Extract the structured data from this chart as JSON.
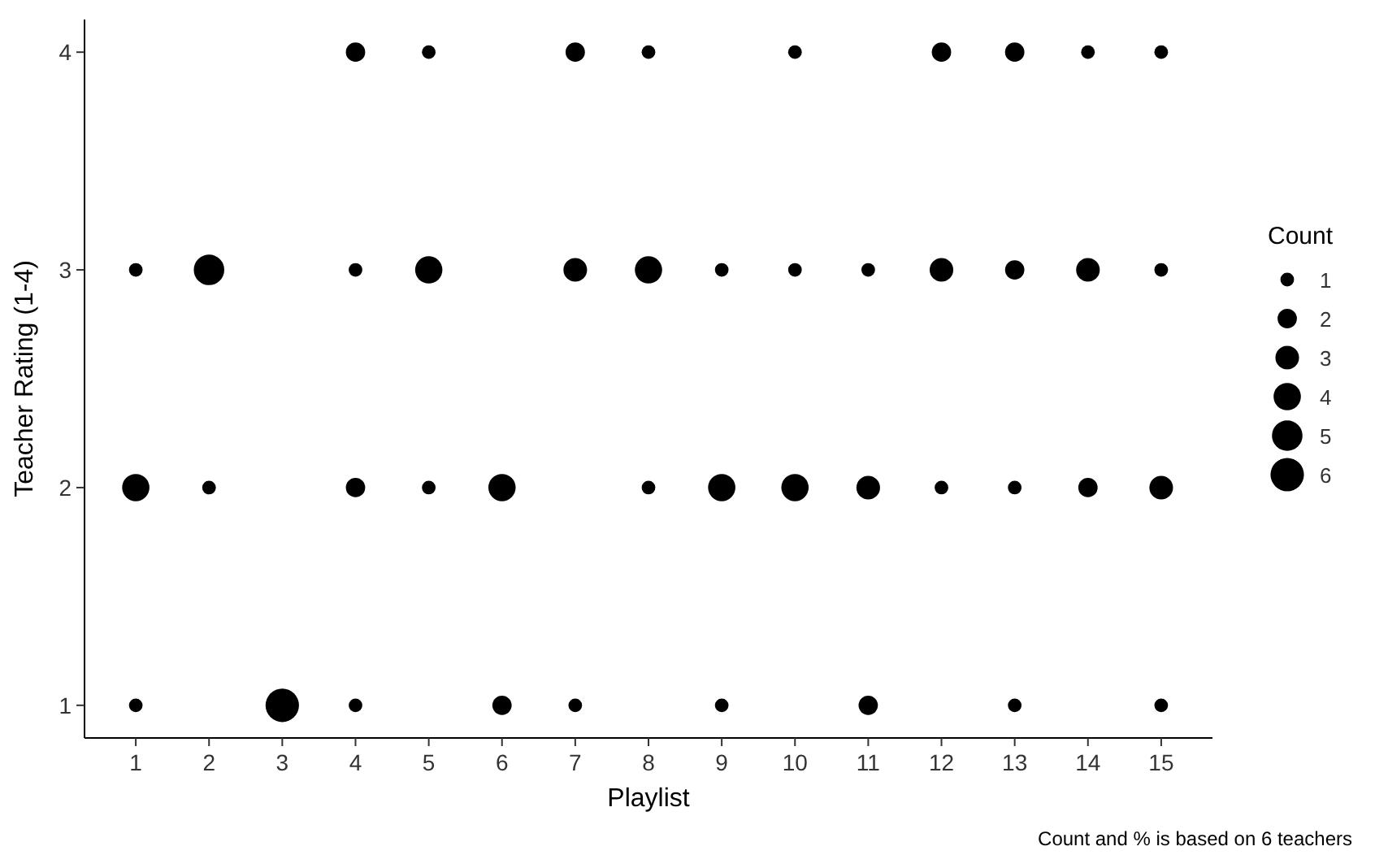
{
  "chart_data": {
    "type": "bubble",
    "xlabel": "Playlist",
    "ylabel": "Teacher Rating (1-4)",
    "legend_title": "Count",
    "annotations": [
      "Count and % is based on 6 teachers"
    ],
    "x": [
      1,
      1,
      1,
      2,
      2,
      3,
      4,
      4,
      4,
      4,
      5,
      5,
      5,
      6,
      6,
      7,
      7,
      7,
      8,
      8,
      8,
      9,
      9,
      9,
      10,
      10,
      10,
      11,
      11,
      11,
      12,
      12,
      12,
      13,
      13,
      13,
      13,
      14,
      14,
      14,
      15,
      15,
      15,
      15
    ],
    "series": [
      {
        "color": "#000000",
        "values": [
          3,
          2,
          1,
          3,
          2,
          1,
          4,
          3,
          2,
          1,
          4,
          3,
          2,
          2,
          1,
          4,
          3,
          1,
          4,
          3,
          2,
          3,
          2,
          1,
          4,
          3,
          2,
          3,
          2,
          1,
          4,
          3,
          2,
          4,
          3,
          2,
          1,
          4,
          3,
          2,
          4,
          3,
          2,
          1
        ],
        "sizes": [
          1,
          4,
          1,
          5,
          1,
          6,
          2,
          1,
          2,
          1,
          1,
          4,
          1,
          4,
          2,
          2,
          3,
          1,
          1,
          4,
          1,
          1,
          4,
          1,
          1,
          1,
          4,
          1,
          3,
          2,
          2,
          3,
          1,
          2,
          2,
          1,
          1,
          1,
          3,
          2,
          1,
          1,
          3,
          1
        ]
      }
    ],
    "size_legend": [
      1,
      2,
      3,
      4,
      5,
      6
    ],
    "xlim": [
      0.3,
      15.7
    ],
    "xticks": [
      1,
      2,
      3,
      4,
      5,
      6,
      7,
      8,
      9,
      10,
      11,
      12,
      13,
      14,
      15
    ],
    "ylim": [
      0.85,
      4.15
    ],
    "yticks": [
      1,
      2,
      3,
      4
    ],
    "grid": false
  }
}
